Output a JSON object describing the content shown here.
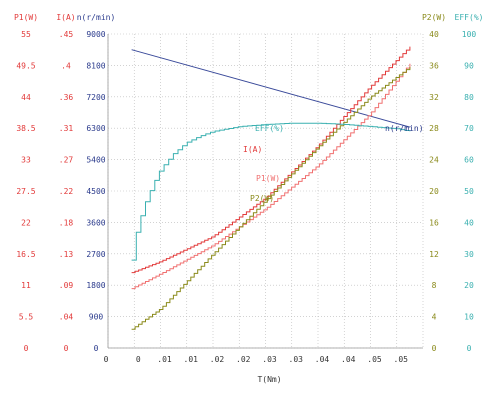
{
  "chart_data": {
    "type": "line",
    "title": "",
    "xlabel": "T(Nm)",
    "x_ticks": [
      "0",
      "0",
      ".01",
      ".01",
      ".02",
      ".02",
      ".03",
      ".03",
      ".04",
      ".04",
      ".05",
      ".05"
    ],
    "left_axes": [
      {
        "label": "P1(W)",
        "color": "#e23a3a",
        "ticks": [
          "0",
          "5.5",
          "11",
          "16.5",
          "22",
          "27.5",
          "33",
          "38.5",
          "44",
          "49.5",
          "55"
        ]
      },
      {
        "label": "I(A)",
        "color": "#e23a3a",
        "ticks": [
          "0",
          ".04",
          ".09",
          ".13",
          ".18",
          ".22",
          ".27",
          ".31",
          ".36",
          ".4",
          ".45"
        ]
      },
      {
        "label": "n(r/min)",
        "color": "#2a3a8c",
        "ticks": [
          "0",
          "900",
          "1800",
          "2700",
          "3600",
          "4500",
          "5400",
          "6300",
          "7200",
          "8100",
          "9000"
        ]
      }
    ],
    "right_axes": [
      {
        "label": "P2(W)",
        "color": "#8a8a1a",
        "ticks": [
          "0",
          "4",
          "8",
          "12",
          "16",
          "20",
          "24",
          "28",
          "32",
          "36",
          "40"
        ]
      },
      {
        "label": "EFF(%)",
        "color": "#3ab0b0",
        "ticks": [
          "0",
          "10",
          "20",
          "30",
          "40",
          "50",
          "60",
          "70",
          "80",
          "90",
          "100"
        ]
      }
    ],
    "series": [
      {
        "name": "n(r/min)",
        "axis": "n(r/min)",
        "color": "#3a4a9a",
        "x": [
          -0.0055,
          0.0475
        ],
        "y": [
          8550,
          6330
        ]
      },
      {
        "name": "I(A)",
        "axis": "I(A)",
        "color": "#e23a3a",
        "x": [
          -0.0055,
          0.0,
          0.01,
          0.02,
          0.03,
          0.04,
          0.0475
        ],
        "y": [
          0.108,
          0.124,
          0.16,
          0.215,
          0.29,
          0.375,
          0.432
        ]
      },
      {
        "name": "P1(W)",
        "axis": "P1(W)",
        "color": "#f07070",
        "x": [
          -0.0055,
          0.0,
          0.01,
          0.02,
          0.03,
          0.04,
          0.0475
        ],
        "y": [
          10.4,
          13.0,
          18.0,
          24.4,
          32.0,
          41.1,
          49.8
        ]
      },
      {
        "name": "P2(W)",
        "axis": "P2(W)",
        "color": "#8a8a1a",
        "x": [
          -0.0055,
          0.0,
          0.01,
          0.02,
          0.03,
          0.04,
          0.0475
        ],
        "y": [
          2.4,
          5.0,
          12.0,
          18.8,
          25.6,
          32.0,
          35.8
        ]
      },
      {
        "name": "EFF(%)",
        "axis": "EFF(%)",
        "color": "#3ab0b0",
        "x": [
          -0.0055,
          -0.0045,
          -0.003,
          -0.0015,
          0.0,
          0.0025,
          0.005,
          0.0075,
          0.01,
          0.015,
          0.02,
          0.025,
          0.03,
          0.035,
          0.04,
          0.045,
          0.0475
        ],
        "y": [
          28,
          38,
          46,
          52,
          57,
          62,
          65.5,
          67.5,
          69,
          70.5,
          71.2,
          71.6,
          71.6,
          71.2,
          70.5,
          69.8,
          69
        ]
      }
    ],
    "annotations": [
      {
        "text": "EFF(%)",
        "color": "#3ab0b0"
      },
      {
        "text": "I(A)",
        "color": "#e23a3a"
      },
      {
        "text": "P1(W)",
        "color": "#f07070"
      },
      {
        "text": "P2(W)",
        "color": "#8a8a1a"
      },
      {
        "text": "n(r/min)",
        "color": "#2a3a8c"
      }
    ],
    "grid": true,
    "gridline_style": "dashed"
  }
}
